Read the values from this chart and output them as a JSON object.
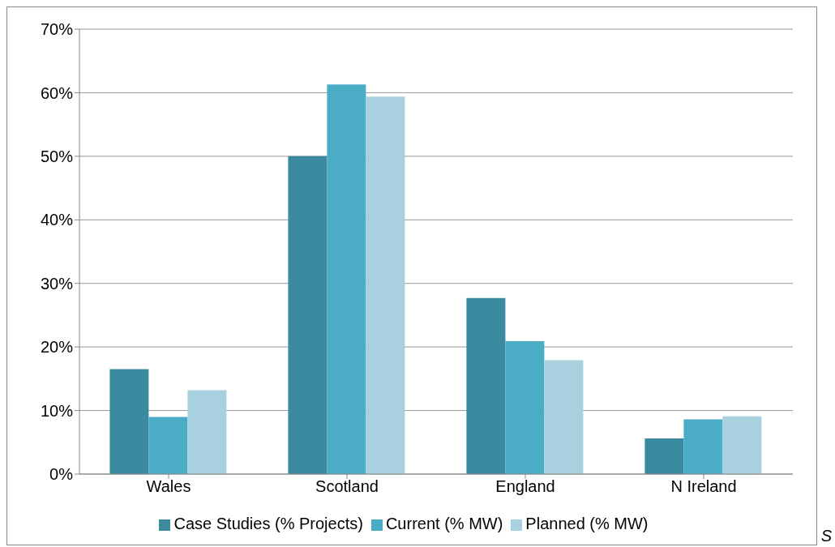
{
  "chart_data": {
    "type": "bar",
    "categories": [
      "Wales",
      "Scotland",
      "England",
      "N Ireland"
    ],
    "series": [
      {
        "name": "Case Studies (% Projects)",
        "color": "#3a8ba0",
        "values": [
          16.5,
          50,
          27.7,
          5.6
        ]
      },
      {
        "name": "Current (% MW)",
        "color": "#4bacc6",
        "values": [
          9,
          61.3,
          20.9,
          8.6
        ]
      },
      {
        "name": "Planned (% MW)",
        "color": "#a9d0de",
        "values": [
          13.2,
          59.4,
          17.9,
          9.1
        ]
      }
    ],
    "ylim": [
      0,
      70
    ],
    "yticks": [
      {
        "value": 0,
        "label": "0%"
      },
      {
        "value": 10,
        "label": "10%"
      },
      {
        "value": 20,
        "label": "20%"
      },
      {
        "value": 30,
        "label": "30%"
      },
      {
        "value": 40,
        "label": "40%"
      },
      {
        "value": 50,
        "label": "50%"
      },
      {
        "value": 60,
        "label": "60%"
      },
      {
        "value": 70,
        "label": "70%"
      }
    ],
    "grid": "y",
    "legend": "bottom",
    "annotations": [
      "S"
    ]
  }
}
